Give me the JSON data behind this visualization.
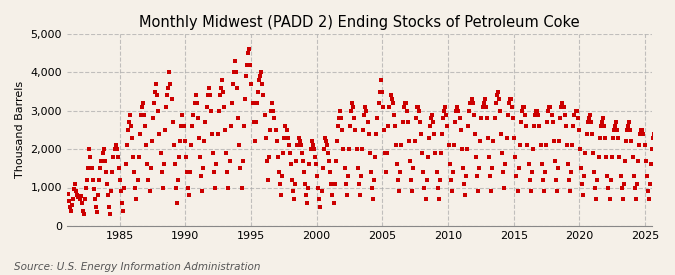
{
  "title": "Monthly Midwest (PADD 2) Ending Stocks of Petroleum Coke",
  "ylabel": "Thousand Barrels",
  "source": "Source: U.S. Energy Information Administration",
  "background_color": "#F5F0E8",
  "plot_bg_color": "#F5F0E8",
  "marker_color": "#CC0000",
  "marker": "s",
  "markersize": 2.8,
  "ylim": [
    0,
    5000
  ],
  "yticks": [
    0,
    1000,
    2000,
    3000,
    4000,
    5000
  ],
  "ytick_labels": [
    "0",
    "1,000",
    "2,000",
    "3,000",
    "4,000",
    "5,000"
  ],
  "start_year": 1981,
  "xtick_years": [
    1985,
    1990,
    1995,
    2000,
    2005,
    2010,
    2015,
    2020,
    2025
  ],
  "grid_color": "#AAAAAA",
  "grid_style": "--",
  "grid_alpha": 0.7,
  "title_fontsize": 10.5,
  "axis_label_fontsize": 8,
  "tick_fontsize": 8,
  "source_fontsize": 7.5,
  "values": [
    820,
    650,
    500,
    400,
    550,
    700,
    950,
    1100,
    900,
    800,
    750,
    700,
    780,
    600,
    400,
    300,
    700,
    1000,
    1200,
    1500,
    2000,
    1800,
    1500,
    1200,
    950,
    700,
    500,
    350,
    800,
    1200,
    1500,
    1700,
    1900,
    2000,
    1700,
    1400,
    1100,
    800,
    500,
    300,
    900,
    1400,
    1800,
    2000,
    2100,
    2000,
    1800,
    1500,
    1200,
    900,
    600,
    400,
    1000,
    1600,
    2100,
    2500,
    2700,
    2900,
    2600,
    2300,
    1800,
    1400,
    1000,
    700,
    1200,
    1800,
    2400,
    2900,
    3100,
    3200,
    2900,
    2600,
    2100,
    1600,
    1200,
    900,
    1500,
    2200,
    2800,
    3200,
    3500,
    3700,
    3400,
    3000,
    2400,
    1900,
    1400,
    1000,
    1600,
    2500,
    3100,
    3400,
    3600,
    4000,
    3700,
    3300,
    2700,
    2100,
    1600,
    1000,
    600,
    1200,
    1800,
    2200,
    2600,
    2900,
    2600,
    2200,
    1800,
    1400,
    1000,
    800,
    1400,
    2100,
    2600,
    2900,
    3200,
    3400,
    3200,
    2800,
    2300,
    1800,
    1300,
    900,
    1500,
    2200,
    2700,
    3100,
    3400,
    3600,
    3400,
    3000,
    2400,
    1900,
    1400,
    1000,
    1600,
    2400,
    3000,
    3400,
    3600,
    3800,
    3500,
    3100,
    2500,
    1900,
    1400,
    1000,
    1700,
    2600,
    3200,
    3700,
    4000,
    4300,
    4000,
    3600,
    2800,
    2100,
    1500,
    1000,
    1700,
    2600,
    3300,
    3900,
    4200,
    4500,
    4600,
    4200,
    3700,
    3200,
    2700,
    2200,
    2700,
    3200,
    3500,
    3800,
    3900,
    4000,
    3700,
    3400,
    2900,
    2300,
    1700,
    1200,
    1800,
    2500,
    3000,
    3200,
    3000,
    2800,
    2500,
    2200,
    1800,
    1400,
    1100,
    800,
    1300,
    1900,
    2300,
    2600,
    2500,
    2300,
    2100,
    1900,
    1600,
    1200,
    900,
    700,
    1100,
    1700,
    2100,
    2300,
    2200,
    2100,
    1900,
    1700,
    1400,
    1100,
    800,
    600,
    1000,
    1600,
    2000,
    2200,
    2100,
    2000,
    1800,
    1600,
    1300,
    1000,
    700,
    500,
    900,
    1500,
    2000,
    2300,
    2200,
    2100,
    1900,
    1700,
    1400,
    1100,
    800,
    600,
    1100,
    1700,
    2200,
    2600,
    2800,
    3000,
    2800,
    2500,
    2000,
    1500,
    1100,
    800,
    1300,
    2000,
    2600,
    3000,
    3200,
    3100,
    2800,
    2500,
    2000,
    1500,
    1100,
    800,
    1300,
    2000,
    2500,
    2900,
    3100,
    3000,
    2700,
    2400,
    1900,
    1400,
    1000,
    700,
    1200,
    1800,
    2400,
    2800,
    3200,
    3500,
    3800,
    3500,
    3100,
    2500,
    1900,
    1400,
    1900,
    2600,
    3100,
    3400,
    3300,
    3200,
    2900,
    2600,
    2100,
    1600,
    1200,
    900,
    1400,
    2100,
    2700,
    3100,
    3200,
    3200,
    3000,
    2700,
    2200,
    1700,
    1200,
    900,
    1500,
    2200,
    2800,
    3100,
    3100,
    3000,
    2700,
    2400,
    1900,
    1400,
    1000,
    700,
    1200,
    1800,
    2300,
    2600,
    2800,
    2900,
    2700,
    2400,
    1900,
    1400,
    1000,
    700,
    1200,
    1900,
    2400,
    2800,
    3000,
    3100,
    2900,
    2600,
    2100,
    1600,
    1200,
    900,
    1400,
    2100,
    2700,
    3000,
    3100,
    3000,
    2800,
    2500,
    2000,
    1500,
    1100,
    800,
    1300,
    2000,
    2600,
    3000,
    3200,
    3300,
    3200,
    2900,
    2400,
    1800,
    1300,
    900,
    1500,
    2200,
    2800,
    3100,
    3200,
    3300,
    3100,
    2800,
    2300,
    1800,
    1300,
    900,
    1500,
    2200,
    2800,
    3200,
    3400,
    3500,
    3300,
    3000,
    2400,
    1900,
    1400,
    1000,
    1600,
    2300,
    2900,
    3200,
    3300,
    3300,
    3100,
    2800,
    2300,
    1800,
    1300,
    900,
    1500,
    2100,
    2700,
    3000,
    3100,
    3100,
    2900,
    2600,
    2100,
    1600,
    1200,
    900,
    1400,
    2000,
    2600,
    2900,
    3000,
    3000,
    2900,
    2600,
    2100,
    1600,
    1200,
    900,
    1400,
    2100,
    2700,
    3000,
    3100,
    3100,
    2900,
    2700,
    2200,
    1700,
    1200,
    900,
    1500,
    2200,
    2800,
    3100,
    3200,
    3100,
    2900,
    2600,
    2100,
    1600,
    1200,
    900,
    1400,
    2100,
    2600,
    2900,
    3000,
    3000,
    2800,
    2500,
    2000,
    1500,
    1100,
    800,
    1300,
    1900,
    2400,
    2700,
    2800,
    2900,
    2700,
    2400,
    1900,
    1400,
    1000,
    700,
    1200,
    1800,
    2300,
    2600,
    2700,
    2800,
    2600,
    2300,
    1800,
    1300,
    1000,
    700,
    1200,
    1800,
    2300,
    2500,
    2600,
    2700,
    2500,
    2300,
    1800,
    1300,
    1000,
    700,
    1100,
    1700,
    2200,
    2500,
    2600,
    2700,
    2500,
    2200,
    1800,
    1300,
    1000,
    700,
    1100,
    1700,
    2100,
    2400,
    2500,
    2500,
    2400,
    2100,
    1700,
    1300,
    900,
    700,
    1100,
    1600,
    2000,
    2300,
    2400,
    2400,
    2200,
    2000,
    1600,
    1200,
    900,
    600,
    900,
    700
  ]
}
